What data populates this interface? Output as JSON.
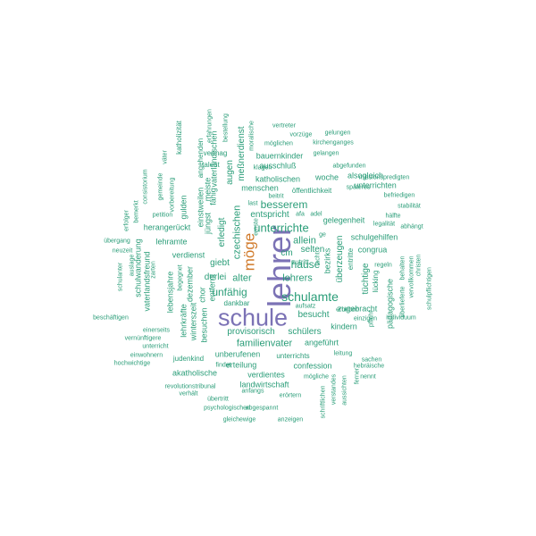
{
  "colors": {
    "dominant": "#7b72b5",
    "secondary": "#d07a2a",
    "primary": "#2a9d78"
  },
  "words": [
    {
      "text": "lehrer",
      "color": "dominant"
    },
    {
      "text": "schule",
      "color": "dominant"
    },
    {
      "text": "möge",
      "color": "secondary"
    },
    {
      "text": "schulamte",
      "color": "primary"
    },
    {
      "text": "unterrichte",
      "color": "primary"
    },
    {
      "text": "besserem",
      "color": "primary"
    },
    {
      "text": "hause",
      "color": "primary"
    },
    {
      "text": "lehrers",
      "color": "primary"
    },
    {
      "text": "unfähig",
      "color": "primary"
    },
    {
      "text": "alter",
      "color": "primary"
    },
    {
      "text": "czechischen",
      "color": "primary"
    },
    {
      "text": "allein",
      "color": "primary"
    },
    {
      "text": "selten",
      "color": "primary"
    },
    {
      "text": "besucht",
      "color": "primary"
    },
    {
      "text": "schülers",
      "color": "primary"
    },
    {
      "text": "familienvater",
      "color": "primary"
    },
    {
      "text": "provisorisch",
      "color": "primary"
    },
    {
      "text": "giebt",
      "color": "primary"
    },
    {
      "text": "cm",
      "color": "primary"
    },
    {
      "text": "entspricht",
      "color": "primary"
    },
    {
      "text": "erledigt",
      "color": "primary"
    },
    {
      "text": "derlei",
      "color": "primary"
    },
    {
      "text": "verdienst",
      "color": "primary"
    },
    {
      "text": "herangerückt",
      "color": "primary"
    },
    {
      "text": "lehramte",
      "color": "primary"
    },
    {
      "text": "schulwanderung",
      "color": "primary"
    },
    {
      "text": "menschen",
      "color": "primary"
    },
    {
      "text": "katholischen",
      "color": "primary"
    },
    {
      "text": "bauernkinder",
      "color": "primary"
    },
    {
      "text": "ausschluß",
      "color": "primary"
    },
    {
      "text": "meßnerdienst",
      "color": "primary"
    },
    {
      "text": "augen",
      "color": "primary"
    },
    {
      "text": "öffentlichkeit",
      "color": "primary"
    },
    {
      "text": "woche",
      "color": "primary"
    },
    {
      "text": "alsogleich",
      "color": "primary"
    },
    {
      "text": "unterrichten",
      "color": "primary"
    },
    {
      "text": "gelegenheit",
      "color": "primary"
    },
    {
      "text": "schulgehilfen",
      "color": "primary"
    },
    {
      "text": "congrua",
      "color": "primary"
    },
    {
      "text": "überzeugen",
      "color": "primary"
    },
    {
      "text": "tüchtige",
      "color": "primary"
    },
    {
      "text": "pädagogische",
      "color": "primary"
    },
    {
      "text": "zugebracht",
      "color": "primary"
    },
    {
      "text": "kindern",
      "color": "primary"
    },
    {
      "text": "angeführt",
      "color": "primary"
    },
    {
      "text": "confession",
      "color": "primary"
    },
    {
      "text": "verdientes",
      "color": "primary"
    },
    {
      "text": "landwirtschaft",
      "color": "primary"
    },
    {
      "text": "erteilung",
      "color": "primary"
    },
    {
      "text": "unterrichts",
      "color": "primary"
    },
    {
      "text": "unberufenen",
      "color": "primary"
    },
    {
      "text": "akatholische",
      "color": "primary"
    },
    {
      "text": "judenkind",
      "color": "primary"
    },
    {
      "text": "dankbar",
      "color": "primary"
    },
    {
      "text": "besuchen",
      "color": "primary"
    },
    {
      "text": "chor",
      "color": "primary"
    },
    {
      "text": "entfernt",
      "color": "primary"
    },
    {
      "text": "winterszeit",
      "color": "primary"
    },
    {
      "text": "lehrkräfte",
      "color": "primary"
    },
    {
      "text": "dezember",
      "color": "primary"
    },
    {
      "text": "lebensjahre",
      "color": "primary"
    },
    {
      "text": "vaterlandsfreund",
      "color": "primary"
    },
    {
      "text": "gulden",
      "color": "primary"
    },
    {
      "text": "jüngst",
      "color": "primary"
    },
    {
      "text": "einstweilen",
      "color": "primary"
    },
    {
      "text": "fähig",
      "color": "primary"
    },
    {
      "text": "meiste",
      "color": "primary"
    },
    {
      "text": "vaterländischen",
      "color": "primary"
    },
    {
      "text": "angehenden",
      "color": "primary"
    },
    {
      "text": "katholizität",
      "color": "primary"
    },
    {
      "text": "vermag",
      "color": "primary"
    },
    {
      "text": "talent",
      "color": "primary"
    },
    {
      "text": "erfahrungen",
      "color": "primary"
    },
    {
      "text": "bestellung",
      "color": "primary"
    },
    {
      "text": "moralische",
      "color": "primary"
    },
    {
      "text": "vertreter",
      "color": "primary"
    },
    {
      "text": "vorzüge",
      "color": "primary"
    },
    {
      "text": "gelungen",
      "color": "primary"
    },
    {
      "text": "möglichen",
      "color": "primary"
    },
    {
      "text": "kirchenganges",
      "color": "primary"
    },
    {
      "text": "gelangen",
      "color": "primary"
    },
    {
      "text": "klagen",
      "color": "primary"
    },
    {
      "text": "abgefunden",
      "color": "primary"
    },
    {
      "text": "missionspredigten",
      "color": "primary"
    },
    {
      "text": "späteres",
      "color": "primary"
    },
    {
      "text": "befriedigen",
      "color": "primary"
    },
    {
      "text": "stabilität",
      "color": "primary"
    },
    {
      "text": "hälfte",
      "color": "primary"
    },
    {
      "text": "legalität",
      "color": "primary"
    },
    {
      "text": "abhängt",
      "color": "primary"
    },
    {
      "text": "regeln",
      "color": "primary"
    },
    {
      "text": "behalten",
      "color": "primary"
    },
    {
      "text": "vervollkommen",
      "color": "primary"
    },
    {
      "text": "christen",
      "color": "primary"
    },
    {
      "text": "schulpflichtigen",
      "color": "primary"
    },
    {
      "text": "überlieferte",
      "color": "primary"
    },
    {
      "text": "einzigen",
      "color": "primary"
    },
    {
      "text": "individuum",
      "color": "primary"
    },
    {
      "text": "pflicht",
      "color": "primary"
    },
    {
      "text": "erheben",
      "color": "primary"
    },
    {
      "text": "aufsatz",
      "color": "primary"
    },
    {
      "text": "leitung",
      "color": "primary"
    },
    {
      "text": "hebräische",
      "color": "primary"
    },
    {
      "text": "sachen",
      "color": "primary"
    },
    {
      "text": "ferner",
      "color": "primary"
    },
    {
      "text": "nennt",
      "color": "primary"
    },
    {
      "text": "mögliche",
      "color": "primary"
    },
    {
      "text": "aussichten",
      "color": "primary"
    },
    {
      "text": "verstandes",
      "color": "primary"
    },
    {
      "text": "schriftlichen",
      "color": "primary"
    },
    {
      "text": "erörtern",
      "color": "primary"
    },
    {
      "text": "abgespannt",
      "color": "primary"
    },
    {
      "text": "anzeigen",
      "color": "primary"
    },
    {
      "text": "gleichewige",
      "color": "primary"
    },
    {
      "text": "psychologischen",
      "color": "primary"
    },
    {
      "text": "übertritt",
      "color": "primary"
    },
    {
      "text": "anfangs",
      "color": "primary"
    },
    {
      "text": "verhält",
      "color": "primary"
    },
    {
      "text": "revolutionstribunal",
      "color": "primary"
    },
    {
      "text": "findet",
      "color": "primary"
    },
    {
      "text": "hochwichtige",
      "color": "primary"
    },
    {
      "text": "einwohnern",
      "color": "primary"
    },
    {
      "text": "unterricht",
      "color": "primary"
    },
    {
      "text": "vernünftigere",
      "color": "primary"
    },
    {
      "text": "einerseits",
      "color": "primary"
    },
    {
      "text": "beschäftigen",
      "color": "primary"
    },
    {
      "text": "schulanter",
      "color": "primary"
    },
    {
      "text": "auslage",
      "color": "primary"
    },
    {
      "text": "neuzeit",
      "color": "primary"
    },
    {
      "text": "übergang",
      "color": "primary"
    },
    {
      "text": "erfolger",
      "color": "primary"
    },
    {
      "text": "bemerkt",
      "color": "primary"
    },
    {
      "text": "consistorium",
      "color": "primary"
    },
    {
      "text": "gemeinde",
      "color": "primary"
    },
    {
      "text": "vorbereitung",
      "color": "primary"
    },
    {
      "text": "väter",
      "color": "primary"
    },
    {
      "text": "petition",
      "color": "primary"
    },
    {
      "text": "zarten",
      "color": "primary"
    },
    {
      "text": "begegnet",
      "color": "primary"
    },
    {
      "text": "ernste",
      "color": "primary"
    },
    {
      "text": "last",
      "color": "primary"
    },
    {
      "text": "beitrit",
      "color": "primary"
    },
    {
      "text": "afa",
      "color": "primary"
    },
    {
      "text": "adel",
      "color": "primary"
    },
    {
      "text": "ge",
      "color": "primary"
    },
    {
      "text": "acht",
      "color": "primary"
    },
    {
      "text": "bezirks",
      "color": "primary"
    },
    {
      "text": "zutritt",
      "color": "primary"
    },
    {
      "text": "entritte",
      "color": "primary"
    },
    {
      "text": "lücking",
      "color": "primary"
    }
  ]
}
